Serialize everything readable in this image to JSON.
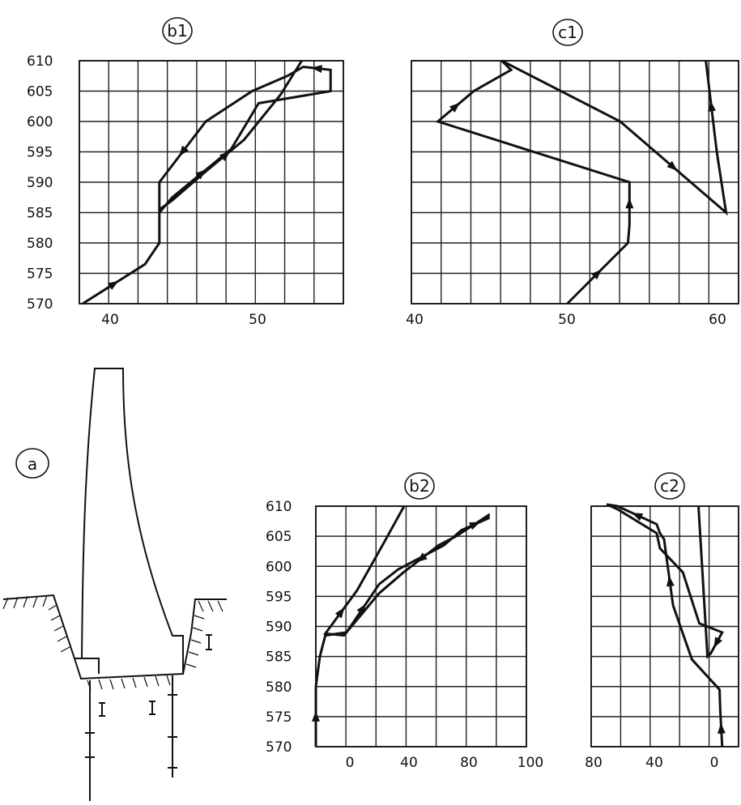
{
  "chart_data": [
    {
      "id": "b1",
      "type": "line",
      "label": "b1",
      "x_ticks": [
        "40",
        "50"
      ],
      "y_ticks": [
        "610",
        "605",
        "600",
        "595",
        "590",
        "585",
        "580",
        "575",
        "570"
      ],
      "xlim": [
        38,
        54.5
      ],
      "ylim": [
        570,
        610
      ],
      "grid": true,
      "series": [
        {
          "x": [
            38.2,
            42.1,
            43.0,
            43.0,
            43.8,
            47.5,
            49.2,
            53.7,
            53.7,
            52.0,
            51.0,
            48.8,
            45.9,
            43.0,
            43.0,
            43.8,
            46.0,
            48.3,
            50.6,
            51.9
          ],
          "y": [
            570,
            576.5,
            580,
            585,
            587.5,
            595.5,
            603,
            605,
            608.5,
            609,
            607.5,
            605,
            600,
            590,
            585.5,
            587,
            592,
            597,
            604.5,
            610
          ]
        }
      ]
    },
    {
      "id": "c1",
      "type": "line",
      "label": "c1",
      "x_ticks": [
        "40",
        "50",
        "60"
      ],
      "y_ticks": [],
      "xlim": [
        40,
        61
      ],
      "ylim": [
        570,
        610
      ],
      "grid": true,
      "series": [
        {
          "x": [
            50.0,
            53.9,
            54.0,
            54.0,
            41.7,
            44.0,
            46.4,
            45.8,
            53.4,
            60.2,
            59.6,
            58.9
          ],
          "y": [
            570,
            580,
            583,
            590,
            600,
            605,
            608.5,
            610,
            600,
            585,
            595,
            610
          ]
        }
      ]
    },
    {
      "id": "b2",
      "type": "line",
      "label": "b2",
      "x_ticks": [
        "0",
        "40",
        "80",
        "100"
      ],
      "y_ticks": [
        "610",
        "605",
        "600",
        "595",
        "590",
        "585",
        "580",
        "575",
        "570"
      ],
      "xlim": [
        0,
        120
      ],
      "ylim": [
        570,
        610
      ],
      "grid": true,
      "series": [
        {
          "x": [
            0,
            0,
            2.3,
            5.4,
            17.5,
            36,
            47,
            73,
            83,
            98.4,
            98.4,
            80,
            70,
            50,
            36,
            16,
            5.4,
            23.5,
            38,
            50.3
          ],
          "y": [
            570,
            580,
            585,
            588.5,
            589,
            597,
            599.5,
            603.5,
            606,
            608,
            608.5,
            605,
            603.5,
            599,
            595.5,
            588.5,
            588.8,
            596,
            603.5,
            610
          ]
        }
      ]
    },
    {
      "id": "c2",
      "type": "line",
      "label": "c2",
      "x_ticks": [
        "80",
        "40",
        "0"
      ],
      "y_ticks": [],
      "xlim": [
        80,
        -10
      ],
      "ylim": [
        570,
        610
      ],
      "grid": true,
      "series": [
        {
          "x": [
            0,
            1.2,
            1.6,
            18.5,
            30,
            34,
            35.5,
            38,
            40,
            64,
            70.5,
            64,
            40,
            38,
            24,
            14,
            0,
            7,
            9,
            14.5
          ],
          "y": [
            570,
            576,
            579.5,
            584.5,
            593.5,
            601.5,
            604.5,
            605.5,
            607,
            610,
            610.3,
            609.5,
            605.5,
            603,
            599,
            590.5,
            589,
            585.5,
            585,
            610
          ]
        }
      ]
    }
  ],
  "panels": {
    "b1": {
      "label": "b1"
    },
    "c1": {
      "label": "c1"
    },
    "b2": {
      "label": "b2"
    },
    "c2": {
      "label": "c2"
    },
    "a": {
      "label": "a"
    }
  }
}
